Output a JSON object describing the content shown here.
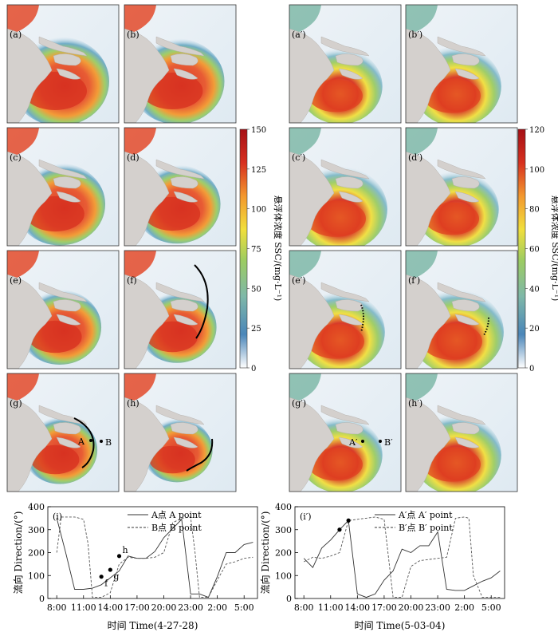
{
  "panels": [
    {
      "label": "(a)",
      "group": "left",
      "time_index": 0
    },
    {
      "label": "(b)",
      "group": "left",
      "time_index": 1
    },
    {
      "label": "(c)",
      "group": "left",
      "time_index": 2
    },
    {
      "label": "(d)",
      "group": "left",
      "time_index": 3
    },
    {
      "label": "(e)",
      "group": "left",
      "time_index": 4
    },
    {
      "label": "(f)",
      "group": "left",
      "time_index": 5
    },
    {
      "label": "(g)",
      "group": "left",
      "time_index": 6
    },
    {
      "label": "(h)",
      "group": "left",
      "time_index": 7
    },
    {
      "label": "(a′)",
      "group": "right",
      "time_index": 0
    },
    {
      "label": "(b′)",
      "group": "right",
      "time_index": 1
    },
    {
      "label": "(c′)",
      "group": "right",
      "time_index": 2
    },
    {
      "label": "(d′)",
      "group": "right",
      "time_index": 3
    },
    {
      "label": "(e′)",
      "group": "right",
      "time_index": 4
    },
    {
      "label": "(f′)",
      "group": "right",
      "time_index": 5
    },
    {
      "label": "(g′)",
      "group": "right",
      "time_index": 6
    },
    {
      "label": "(h′)",
      "group": "right",
      "time_index": 7
    }
  ],
  "map_annotations": {
    "point_A": "A",
    "point_B": "B",
    "point_A_prime": "A′",
    "point_B_prime": "B′"
  },
  "colorbars": [
    {
      "ticks": [
        "150",
        "125",
        "100",
        "75",
        "50",
        "25",
        "0"
      ],
      "min": 0,
      "max": 150
    },
    {
      "ticks": [
        "120",
        "100",
        "80",
        "60",
        "40",
        "20",
        "0"
      ],
      "min": 0,
      "max": 120
    }
  ],
  "colorbar_label": "悬浮体浓度 SSC/(mg·L⁻¹)",
  "colormap": [
    "#ffffff",
    "#4a86b9",
    "#7fb8a8",
    "#9ccc62",
    "#f1df3c",
    "#f3982e",
    "#d7301f",
    "#a50f15"
  ],
  "chart_data": [
    {
      "type": "line",
      "panel_label": "(i)",
      "xlabel": "时间 Time(4-27-28)",
      "ylabel": "流向 Direction/(°)",
      "x_ticks": [
        "8:00",
        "11:00",
        "14:00",
        "17:00",
        "20:00",
        "23:00",
        "2:00",
        "5:00"
      ],
      "y_ticks": [
        "0",
        "100",
        "200",
        "300",
        "400"
      ],
      "xlim_hours": [
        7,
        30.5
      ],
      "ylim": [
        0,
        400
      ],
      "series": [
        {
          "name": "A点 A point",
          "style": "solid",
          "x": [
            8,
            9,
            10,
            11,
            12,
            13,
            14,
            15,
            16,
            17,
            18,
            19,
            20,
            21,
            22,
            23,
            24,
            25,
            26,
            27,
            28,
            29,
            30
          ],
          "y": [
            350,
            200,
            40,
            40,
            45,
            60,
            90,
            120,
            185,
            175,
            175,
            205,
            265,
            305,
            345,
            20,
            20,
            5,
            95,
            200,
            200,
            235,
            245
          ]
        },
        {
          "name": "B点 B point",
          "style": "dashed",
          "x": [
            8,
            8.5,
            10,
            11,
            11.5,
            12,
            13,
            14,
            15,
            16,
            17,
            18,
            19,
            20,
            21,
            22,
            23,
            23.5,
            24,
            25,
            26,
            27,
            28,
            29,
            30
          ],
          "y": [
            200,
            355,
            355,
            345,
            240,
            5,
            5,
            25,
            150,
            180,
            175,
            175,
            180,
            200,
            330,
            350,
            355,
            200,
            5,
            5,
            80,
            150,
            160,
            175,
            180
          ]
        }
      ],
      "markers": [
        {
          "label": "f",
          "x": 13,
          "y": 95
        },
        {
          "label": "g",
          "x": 14,
          "y": 125
        },
        {
          "label": "h",
          "x": 15,
          "y": 185
        }
      ]
    },
    {
      "type": "line",
      "panel_label": "(i′)",
      "xlabel": "时间 Time(5-03-04)",
      "ylabel": "流向 Direction/(°)",
      "x_ticks": [
        "8:00",
        "11:00",
        "14:00",
        "17:00",
        "20:00",
        "23:00",
        "2:00",
        "5:00"
      ],
      "y_ticks": [
        "0",
        "100",
        "200",
        "300",
        "400"
      ],
      "xlim_hours": [
        7,
        30.5
      ],
      "ylim": [
        0,
        400
      ],
      "series": [
        {
          "name": "A′点 A′ point",
          "style": "solid",
          "x": [
            8,
            9,
            10,
            11,
            12,
            13,
            14,
            15,
            16,
            17,
            18,
            19,
            20,
            21,
            22,
            23,
            24,
            25,
            26,
            27,
            28,
            29,
            30
          ],
          "y": [
            175,
            135,
            220,
            255,
            300,
            340,
            20,
            5,
            20,
            80,
            120,
            215,
            200,
            230,
            230,
            290,
            40,
            35,
            35,
            55,
            75,
            90,
            120
          ]
        },
        {
          "name": "B′点 B′ point",
          "style": "dashed",
          "x": [
            8,
            9,
            10,
            11,
            12,
            13,
            14,
            15,
            16,
            17,
            17.5,
            18,
            19,
            20,
            21,
            22,
            23,
            24,
            25,
            26,
            26.5,
            27,
            28,
            29,
            30
          ],
          "y": [
            160,
            180,
            175,
            185,
            200,
            340,
            345,
            350,
            355,
            345,
            175,
            5,
            5,
            140,
            165,
            170,
            175,
            180,
            350,
            355,
            350,
            100,
            5,
            5,
            5
          ]
        }
      ],
      "markers": [
        {
          "label": "",
          "x": 12,
          "y": 300
        },
        {
          "label": "",
          "x": 13,
          "y": 340
        }
      ]
    }
  ]
}
